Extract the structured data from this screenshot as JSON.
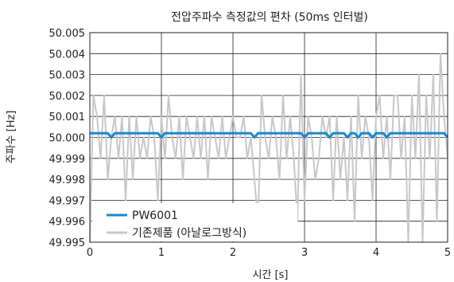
{
  "chart_data": {
    "type": "line",
    "title": "전압주파수 측정값의 편차 (50ms 인터벌)",
    "xlabel": "시간 [s]",
    "ylabel": "주파수 [Hz]",
    "xlim": [
      0,
      5
    ],
    "ylim": [
      49.995,
      50.005
    ],
    "xticks": [
      "0",
      "1",
      "2",
      "3",
      "4",
      "5"
    ],
    "yticks": [
      "49.995",
      "49.996",
      "49.997",
      "49.998",
      "49.999",
      "50.000",
      "50.001",
      "50.002",
      "50.003",
      "50.004",
      "50.005"
    ],
    "grid": true,
    "legend_position": "bottom-left",
    "x_step": 0.05,
    "series": [
      {
        "name": "PW6001",
        "color": "#1a88d0",
        "values": [
          50.0002,
          50.0002,
          50.0002,
          50.0002,
          50.0002,
          50.0002,
          50.0,
          50.0002,
          50.0002,
          50.0002,
          50.0002,
          50.0002,
          50.0002,
          50.0002,
          50.0002,
          50.0002,
          50.0002,
          50.0002,
          50.0002,
          50.0002,
          50.0,
          50.0002,
          50.0002,
          50.0002,
          50.0002,
          50.0002,
          50.0002,
          50.0002,
          50.0002,
          50.0002,
          50.0002,
          50.0002,
          50.0002,
          50.0002,
          50.0002,
          50.0002,
          50.0002,
          50.0002,
          50.0002,
          50.0002,
          50.0002,
          50.0002,
          50.0002,
          50.0002,
          50.0002,
          50.0002,
          50.0,
          50.0002,
          50.0002,
          50.0002,
          50.0002,
          50.0002,
          50.0002,
          50.0002,
          50.0002,
          50.0002,
          50.0002,
          50.0002,
          50.0002,
          50.0002,
          50.0,
          50.0002,
          50.0002,
          50.0002,
          50.0002,
          50.0002,
          50.0002,
          50.0,
          50.0002,
          50.0002,
          50.0002,
          50.0002,
          50.0,
          50.0002,
          50.0002,
          50.0,
          50.0002,
          50.0002,
          50.0002,
          50.0,
          50.0002,
          50.0002,
          50.0002,
          50.0,
          50.0002,
          50.0002,
          50.0002,
          50.0002,
          50.0002,
          50.0002,
          50.0002,
          50.0002,
          50.0002,
          50.0002,
          50.0002,
          50.0002,
          50.0002,
          50.0002,
          50.0002,
          50.0002,
          50.0
        ]
      },
      {
        "name": "기존제품 (아날로그방식)",
        "color": "#c8c8c8",
        "values": [
          49.995,
          50.002,
          50.001,
          49.999,
          50.002,
          49.998,
          50.0,
          50.001,
          49.999,
          50.001,
          49.997,
          50.001,
          49.998,
          50.001,
          49.999,
          50.0,
          49.999,
          50.001,
          50.0,
          49.997,
          50.001,
          49.999,
          50.002,
          50.0,
          49.999,
          50.001,
          49.998,
          50.001,
          50.0,
          49.999,
          50.001,
          49.999,
          50.001,
          49.998,
          50.001,
          50.0,
          49.999,
          50.001,
          49.999,
          50.0,
          50.001,
          50.0,
          50.0,
          50.001,
          49.999,
          50.0,
          49.998,
          49.996,
          50.002,
          50.0,
          49.999,
          50.001,
          50.0,
          49.998,
          50.002,
          49.999,
          50.001,
          49.999,
          49.996,
          50.003,
          49.997,
          50.001,
          50.0,
          49.998,
          49.999,
          50.001,
          50.0,
          50.001,
          49.997,
          50.001,
          49.998,
          50.0,
          49.997,
          50.001,
          49.996,
          50.002,
          49.999,
          50.001,
          50.0,
          49.997,
          50.001,
          50.002,
          49.999,
          50.001,
          49.998,
          50.002,
          50.002,
          49.999,
          50.001,
          49.995,
          50.002,
          49.999,
          50.003,
          49.995,
          50.002,
          49.999,
          50.003,
          49.996,
          50.004,
          50.001,
          49.999
        ]
      }
    ]
  }
}
